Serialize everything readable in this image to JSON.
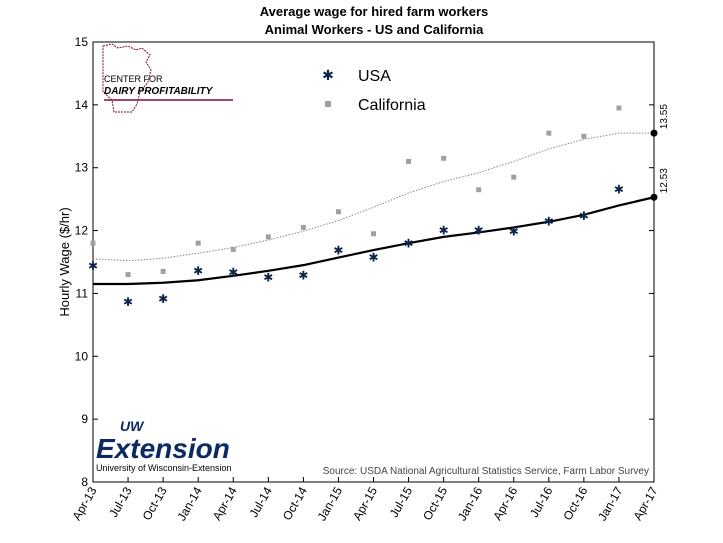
{
  "chart_data": {
    "type": "scatter",
    "title": "Average wage for hired farm workers",
    "subtitle": "Animal Workers - US and California",
    "ylabel": "Hourly Wage ($/hr)",
    "xlabel": "",
    "ylim": [
      8,
      15
    ],
    "yticks": [
      8,
      9,
      10,
      11,
      12,
      13,
      14,
      15
    ],
    "categories": [
      "Apr-13",
      "Jul-13",
      "Oct-13",
      "Jan-14",
      "Apr-14",
      "Jul-14",
      "Oct-14",
      "Jan-15",
      "Apr-15",
      "Jul-15",
      "Oct-15",
      "Jan-16",
      "Apr-16",
      "Jul-16",
      "Oct-16",
      "Jan-17",
      "Apr-17"
    ],
    "legend_position": "top",
    "grid": false,
    "series": [
      {
        "name": "USA",
        "marker": "star",
        "color": "#0b2548",
        "values": [
          11.45,
          10.88,
          10.93,
          11.37,
          11.35,
          11.27,
          11.3,
          11.7,
          11.59,
          11.81,
          12.02,
          12.02,
          12.0,
          12.16,
          12.25,
          12.67,
          null
        ],
        "trend": [
          11.15,
          11.15,
          11.17,
          11.21,
          11.28,
          11.36,
          11.45,
          11.57,
          11.69,
          11.8,
          11.9,
          11.97,
          12.05,
          12.14,
          12.25,
          12.4,
          12.53
        ],
        "trend_color": "#000000",
        "end_label": "12.53"
      },
      {
        "name": "California",
        "marker": "square",
        "color": "#a0a0a0",
        "values": [
          11.8,
          11.3,
          11.35,
          11.8,
          11.7,
          11.9,
          12.05,
          12.3,
          11.95,
          13.1,
          13.15,
          12.65,
          12.85,
          13.55,
          13.5,
          13.95,
          null
        ],
        "trend": [
          11.55,
          11.52,
          11.56,
          11.64,
          11.73,
          11.85,
          11.99,
          12.16,
          12.37,
          12.6,
          12.78,
          12.92,
          13.1,
          13.3,
          13.45,
          13.55,
          13.55
        ],
        "trend_color": "#888888",
        "end_label": "13.55"
      }
    ],
    "source": "Source: USDA National Agricultural Statistics Service, Farm Labor Survey"
  },
  "logos": {
    "cdp_line1": "CENTER FOR",
    "cdp_line2": "DAIRY PROFITABILITY",
    "uw_top": "UW",
    "uw_main": "Extension",
    "uw_sub": "University of Wisconsin-Extension"
  }
}
